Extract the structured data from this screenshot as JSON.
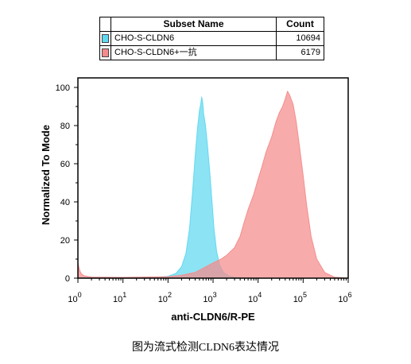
{
  "legend": {
    "header_name": "Subset Name",
    "header_count": "Count",
    "rows": [
      {
        "name": "CHO-S-CLDN6",
        "count": "10694",
        "color": "#5fd8f0"
      },
      {
        "name": "CHO-S-CLDN6+一抗",
        "count": "6179",
        "color": "#f58a8a"
      }
    ]
  },
  "caption": "图为流式检测CLDN6表达情况",
  "chart_data": {
    "type": "area",
    "xlabel": "anti-CLDN6/R-PE",
    "ylabel": "Normalized To Mode",
    "x_scale": "log",
    "xlim": [
      1,
      1000000
    ],
    "ylim": [
      0,
      105
    ],
    "x_ticks": [
      1,
      10,
      100,
      1000,
      10000,
      100000,
      1000000
    ],
    "x_tick_base": "10",
    "x_tick_exponents": [
      "0",
      "1",
      "2",
      "3",
      "4",
      "5",
      "6"
    ],
    "y_ticks": [
      0,
      20,
      40,
      60,
      80,
      100
    ],
    "grid": false,
    "series": [
      {
        "name": "CHO-S-CLDN6",
        "color": "#5fd8f0",
        "points": [
          [
            1,
            0.3
          ],
          [
            10,
            0.2
          ],
          [
            50,
            0.4
          ],
          [
            100,
            1.0
          ],
          [
            150,
            2.5
          ],
          [
            200,
            6
          ],
          [
            250,
            13
          ],
          [
            300,
            26
          ],
          [
            350,
            45
          ],
          [
            400,
            64
          ],
          [
            450,
            78
          ],
          [
            500,
            88
          ],
          [
            530,
            91
          ],
          [
            560,
            95
          ],
          [
            590,
            92
          ],
          [
            620,
            86
          ],
          [
            680,
            80
          ],
          [
            750,
            70
          ],
          [
            850,
            55
          ],
          [
            950,
            40
          ],
          [
            1050,
            26
          ],
          [
            1200,
            14
          ],
          [
            1400,
            7
          ],
          [
            1700,
            3
          ],
          [
            2200,
            1.2
          ],
          [
            3000,
            0.5
          ],
          [
            5000,
            0.2
          ],
          [
            10000,
            0
          ]
        ]
      },
      {
        "name": "CHO-S-CLDN6+一抗",
        "color": "#f58a8a",
        "points": [
          [
            1,
            8
          ],
          [
            1.06,
            5.5
          ],
          [
            1.12,
            3.5
          ],
          [
            1.22,
            2
          ],
          [
            1.4,
            1.2
          ],
          [
            2,
            0.6
          ],
          [
            10,
            0.4
          ],
          [
            100,
            0.8
          ],
          [
            200,
            1.5
          ],
          [
            400,
            3
          ],
          [
            700,
            6
          ],
          [
            1000,
            8
          ],
          [
            1500,
            10
          ],
          [
            2000,
            12
          ],
          [
            3000,
            16
          ],
          [
            4000,
            22
          ],
          [
            5000,
            30
          ],
          [
            6000,
            36
          ],
          [
            8000,
            44
          ],
          [
            10000,
            52
          ],
          [
            12000,
            58
          ],
          [
            15000,
            66
          ],
          [
            20000,
            74
          ],
          [
            25000,
            82
          ],
          [
            30000,
            87
          ],
          [
            35000,
            90
          ],
          [
            40000,
            94
          ],
          [
            45000,
            98
          ],
          [
            50000,
            96
          ],
          [
            60000,
            91
          ],
          [
            70000,
            82
          ],
          [
            80000,
            72
          ],
          [
            100000,
            54
          ],
          [
            120000,
            38
          ],
          [
            150000,
            22
          ],
          [
            200000,
            10
          ],
          [
            300000,
            3
          ],
          [
            500000,
            0.5
          ],
          [
            1000000,
            0
          ]
        ]
      }
    ]
  }
}
